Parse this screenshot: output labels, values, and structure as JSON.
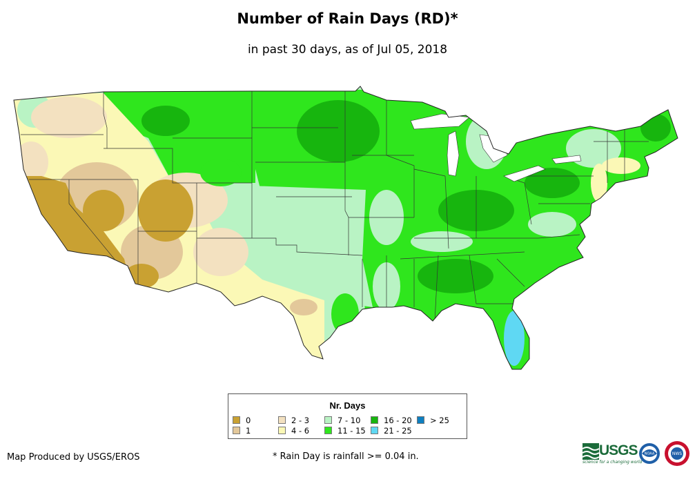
{
  "title": "Number of Rain Days (RD)*",
  "subtitle": "in past 30 days, as of Jul 05, 2018",
  "legend": {
    "title": "Nr. Days",
    "items": [
      {
        "label": "0",
        "color": "#c9a132"
      },
      {
        "label": "1",
        "color": "#e3c89a"
      },
      {
        "label": "2 - 3",
        "color": "#f3e1c0"
      },
      {
        "label": "4 - 6",
        "color": "#fbf8b6"
      },
      {
        "label": "7 - 10",
        "color": "#b9f3c4"
      },
      {
        "label": "11 - 15",
        "color": "#2fe61d"
      },
      {
        "label": "16 - 20",
        "color": "#17b50e"
      },
      {
        "label": "21 - 25",
        "color": "#5fd8f3"
      },
      {
        "label": "> 25",
        "color": "#0e7fc0"
      }
    ]
  },
  "credit": "Map Produced by USGS/EROS",
  "footnote": "* Rain Day is rainfall >= 0.04 in.",
  "logos": {
    "usgs": {
      "text": "USGS",
      "tagline": "science for a changing world"
    },
    "noaa": {
      "text": "NOAA"
    },
    "nws": {
      "text": "NWS"
    }
  }
}
